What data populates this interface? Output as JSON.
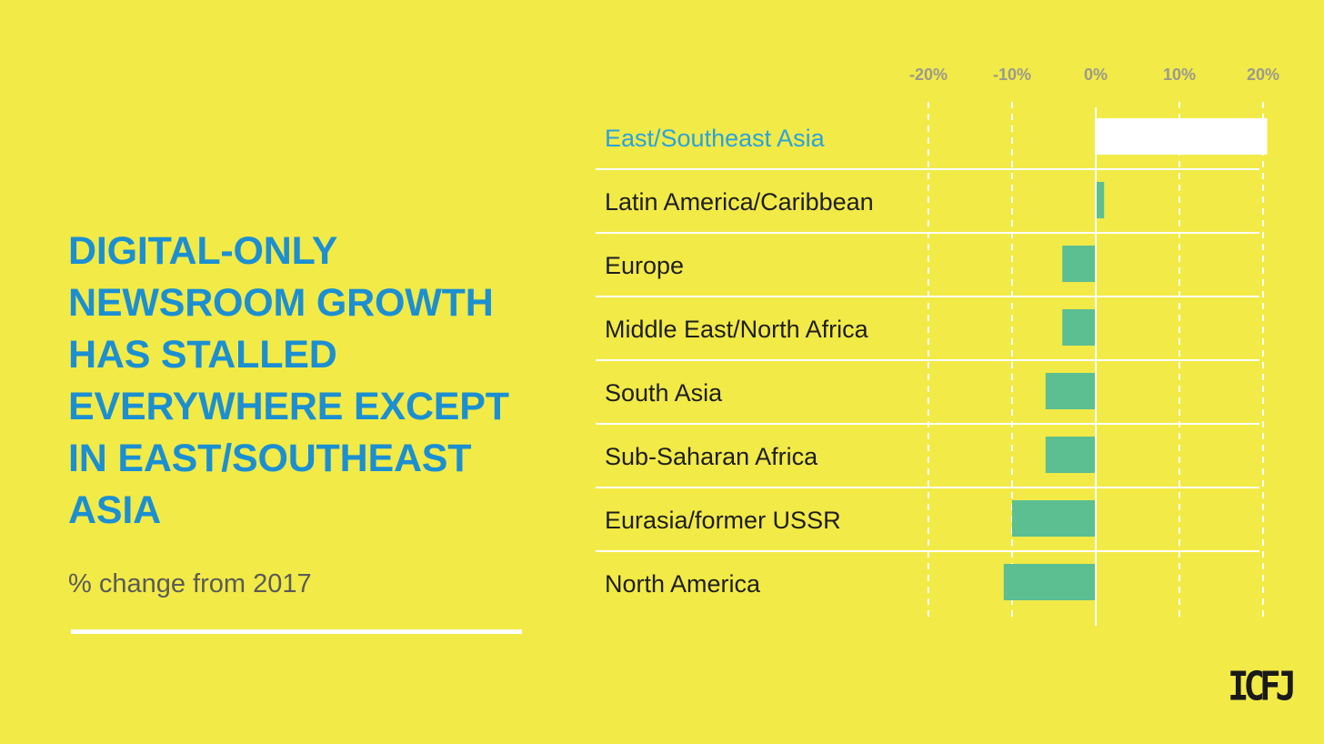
{
  "title": "DIGITAL-ONLY\nNEWSROOM GROWTH\nHAS STALLED\nEVERYWHERE EXCEPT\nIN EAST/SOUTHEAST\nASIA",
  "subtitle": "% change from 2017",
  "logo": "ICFJ",
  "colors": {
    "background": "#f2ea47",
    "title": "#1b8fd2",
    "highlight_label": "#2aa3dd",
    "bar": "#5bbf91",
    "highlight_bar": "#ffffff",
    "tick_label": "#9a9a8e",
    "label": "#1e1e1e",
    "gridline": "#ffffff"
  },
  "chart_data": {
    "type": "bar",
    "orientation": "horizontal",
    "categories": [
      "East/Southeast Asia",
      "Latin America/Caribbean",
      "Europe",
      "Middle East/North Africa",
      "South Asia",
      "Sub-Saharan Africa",
      "Eurasia/former USSR",
      "North America"
    ],
    "values": [
      20.5,
      1,
      -4,
      -4,
      -6,
      -6,
      -10,
      -11
    ],
    "highlight": "East/Southeast Asia",
    "xlim": [
      -20,
      20
    ],
    "xticks": [
      -20,
      -10,
      0,
      10,
      20
    ],
    "xtick_labels": [
      "-20%",
      "-10%",
      "0%",
      "10%",
      "20%"
    ],
    "grid": true,
    "xlabel": "",
    "ylabel": ""
  }
}
